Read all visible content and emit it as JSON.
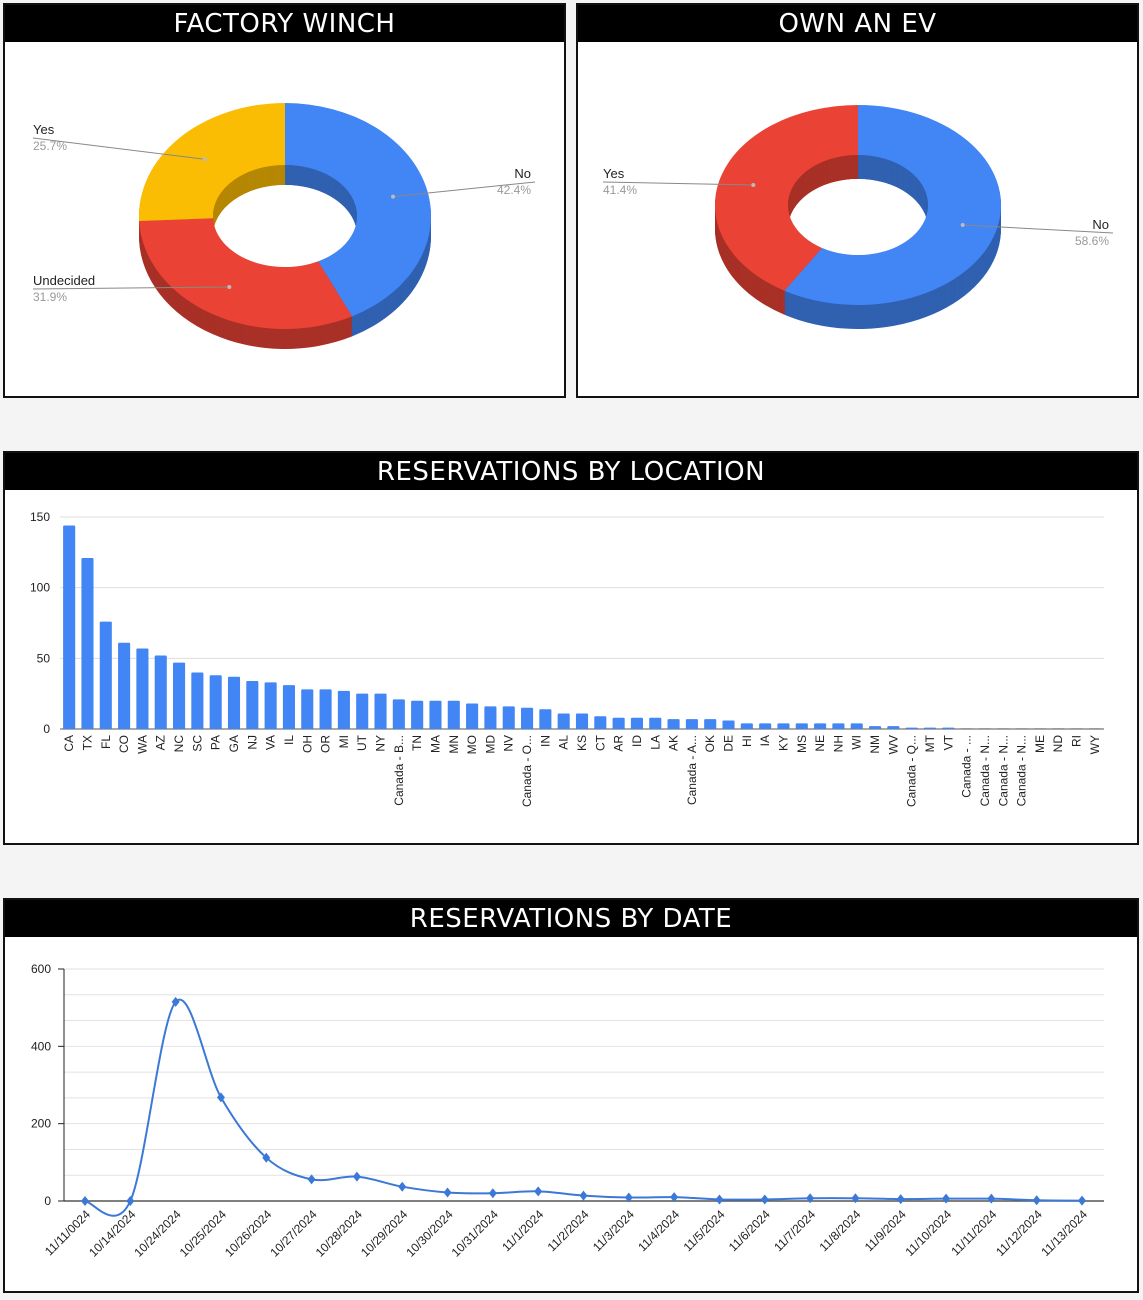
{
  "panels": {
    "winch": {
      "title": "FACTORY WINCH"
    },
    "ev": {
      "title": "OWN AN EV"
    },
    "location": {
      "title": "RESERVATIONS BY LOCATION"
    },
    "date": {
      "title": "RESERVATIONS BY DATE"
    }
  },
  "chart_data": [
    {
      "type": "pie",
      "style": "3d-donut",
      "slices": [
        {
          "label": "No",
          "value": 42.4,
          "pct_label": "42.4%",
          "color": "#4285f4"
        },
        {
          "label": "Undecided",
          "value": 31.9,
          "pct_label": "31.9%",
          "color": "#ea4335"
        },
        {
          "label": "Yes",
          "value": 25.7,
          "pct_label": "25.7%",
          "color": "#fbbc04"
        }
      ]
    },
    {
      "type": "pie",
      "style": "3d-donut",
      "slices": [
        {
          "label": "No",
          "value": 58.6,
          "pct_label": "58.6%",
          "color": "#4285f4"
        },
        {
          "label": "Yes",
          "value": 41.4,
          "pct_label": "41.4%",
          "color": "#ea4335"
        }
      ]
    },
    {
      "type": "bar",
      "ylim": [
        0,
        150
      ],
      "yticks": [
        "0",
        "50",
        "100",
        "150"
      ],
      "grid": true,
      "color": "#4285f4",
      "categories": [
        "CA",
        "TX",
        "FL",
        "CO",
        "WA",
        "AZ",
        "NC",
        "SC",
        "PA",
        "GA",
        "NJ",
        "VA",
        "IL",
        "OH",
        "OR",
        "MI",
        "UT",
        "NY",
        "Canada - B...",
        "TN",
        "MA",
        "MN",
        "MO",
        "MD",
        "NV",
        "Canada - O...",
        "IN",
        "AL",
        "KS",
        "CT",
        "AR",
        "ID",
        "LA",
        "AK",
        "Canada - A...",
        "OK",
        "DE",
        "HI",
        "IA",
        "KY",
        "MS",
        "NE",
        "NH",
        "WI",
        "NM",
        "WV",
        "Canada - Q...",
        "MT",
        "VT",
        "Canada - ...",
        "Canada - N...",
        "Canada - N...",
        "Canada - N...",
        "ME",
        "ND",
        "RI",
        "WY"
      ],
      "values": [
        144,
        121,
        76,
        61,
        57,
        52,
        47,
        40,
        38,
        37,
        34,
        33,
        31,
        28,
        28,
        27,
        25,
        25,
        21,
        20,
        20,
        20,
        18,
        16,
        16,
        15,
        14,
        11,
        11,
        9,
        8,
        8,
        8,
        7,
        7,
        7,
        6,
        4,
        4,
        4,
        4,
        4,
        4,
        4,
        2,
        2,
        1,
        1,
        1,
        0,
        0,
        0,
        0,
        0,
        0,
        0,
        0
      ]
    },
    {
      "type": "line",
      "smooth": true,
      "marker": "diamond",
      "ylim": [
        0,
        600
      ],
      "yticks": [
        "0",
        "200",
        "400",
        "600"
      ],
      "grid": true,
      "color": "#3c78d8",
      "categories": [
        "11/11/0024",
        "10/14/2024",
        "10/24/2024",
        "10/25/2024",
        "10/26/2024",
        "10/27/2024",
        "10/28/2024",
        "10/29/2024",
        "10/30/2024",
        "10/31/2024",
        "11/1/2024",
        "11/2/2024",
        "11/3/2024",
        "11/4/2024",
        "11/5/2024",
        "11/6/2024",
        "11/7/2024",
        "11/8/2024",
        "11/9/2024",
        "11/10/2024",
        "11/11/2024",
        "11/12/2024",
        "11/13/2024"
      ],
      "values": [
        0,
        0,
        515,
        268,
        112,
        56,
        63,
        37,
        22,
        20,
        25,
        14,
        9,
        10,
        4,
        4,
        7,
        7,
        5,
        6,
        6,
        2,
        1
      ]
    }
  ]
}
